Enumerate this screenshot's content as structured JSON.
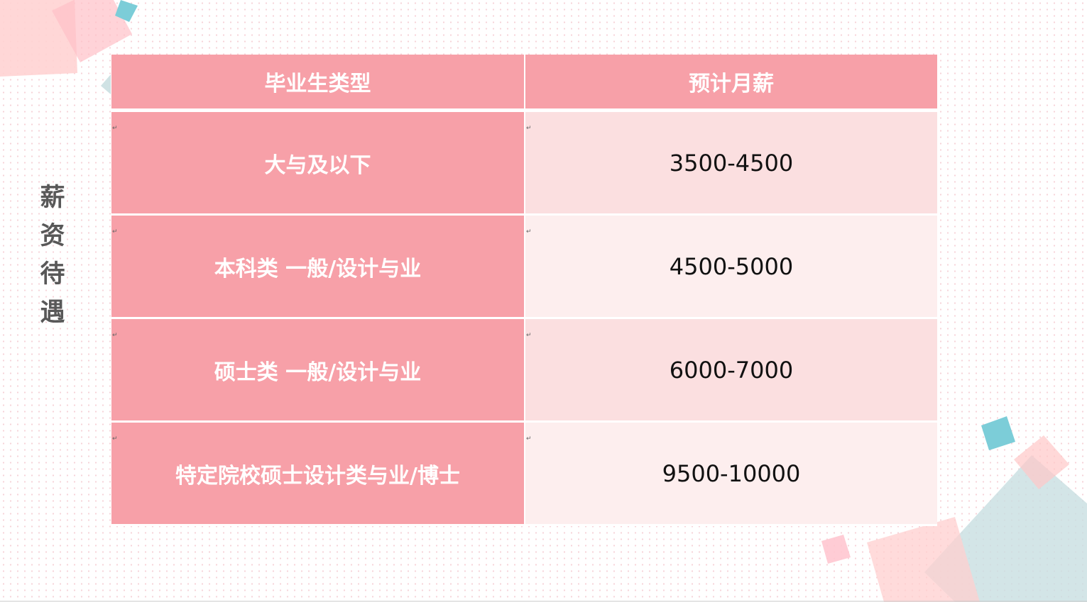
{
  "title": "薪资待遇",
  "title_chars": [
    "薪",
    "资",
    "待",
    "遇"
  ],
  "table": {
    "headers": [
      "毕业生类型",
      "预计月薪"
    ],
    "rows": [
      {
        "type": "大与及以下",
        "salary": "3500-4500"
      },
      {
        "type": "本科类 一般/设计与业",
        "salary": "4500-5000"
      },
      {
        "type": "硕士类 一般/设计与业",
        "salary": "6000-7000"
      },
      {
        "type": "特定院校硕士设计类与业/博士",
        "salary": "9500-10000"
      }
    ]
  },
  "colors": {
    "header_cell": "#f7a0a8",
    "row_light": "#fbdfe0",
    "row_lighter": "#fdeeee",
    "accent_teal": "#7ccdd8",
    "title_text": "#585858"
  }
}
